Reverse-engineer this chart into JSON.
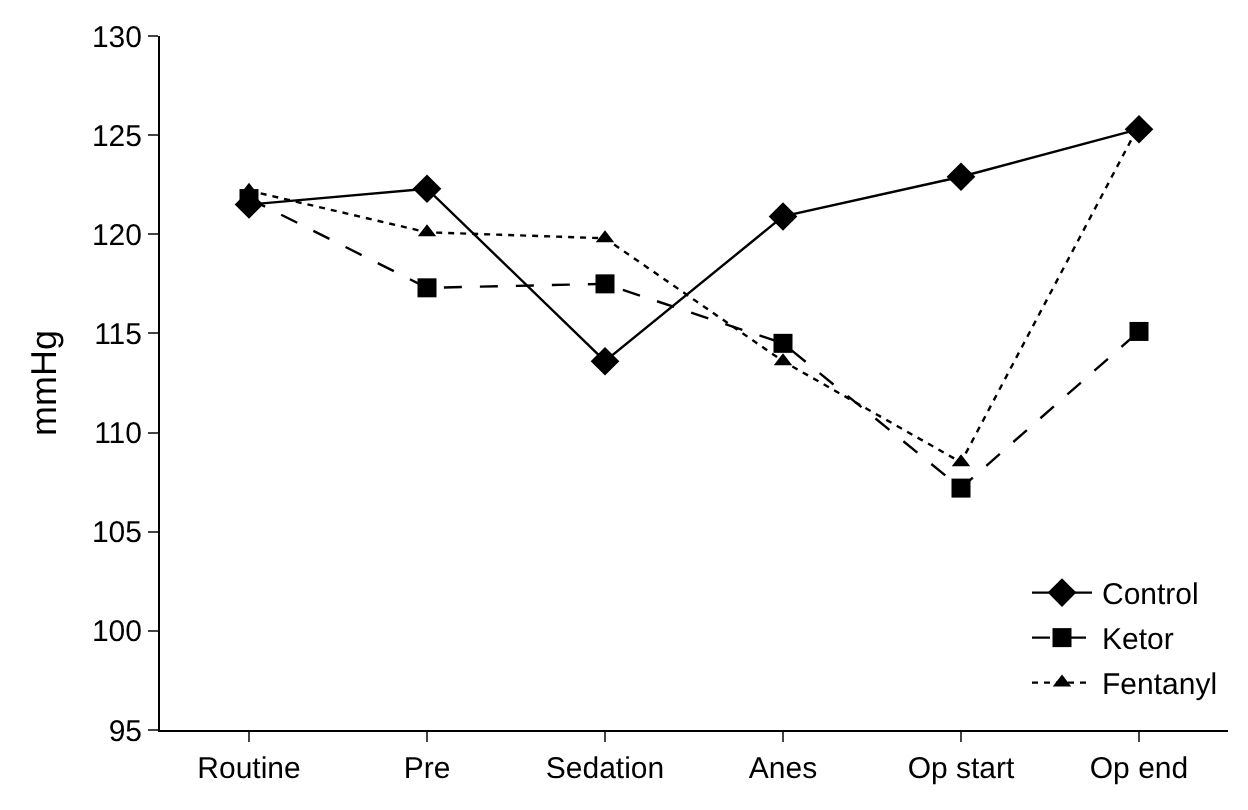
{
  "chart_data": {
    "type": "line",
    "ylabel": "mmHg",
    "categories": [
      "Routine",
      "Pre",
      "Sedation",
      "Anes",
      "Op start",
      "Op end"
    ],
    "series": [
      {
        "name": "Control",
        "color": "#000000",
        "marker": "diamond",
        "line_style": "solid",
        "values": [
          121.5,
          122.3,
          113.6,
          120.9,
          122.9,
          125.3
        ]
      },
      {
        "name": "Ketor",
        "color": "#000000",
        "marker": "square",
        "line_style": "dashed",
        "values": [
          121.8,
          117.3,
          117.5,
          114.5,
          107.2,
          115.1
        ]
      },
      {
        "name": "Fentanyl",
        "color": "#000000",
        "marker": "triangle",
        "line_style": "dotted",
        "values": [
          122.2,
          120.1,
          119.8,
          113.6,
          108.5,
          125.5
        ]
      }
    ],
    "ylim": [
      95,
      130
    ],
    "yticks": [
      95,
      100,
      105,
      110,
      115,
      120,
      125,
      130
    ],
    "grid": false,
    "legend": "bottom right"
  }
}
